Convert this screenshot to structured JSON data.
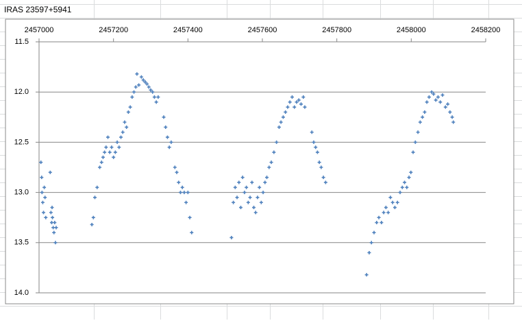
{
  "chart_data": {
    "type": "scatter",
    "title": "IRAS 23597+5941",
    "xlim": [
      2457000,
      2458200
    ],
    "xticks": [
      2457000,
      2457200,
      2457400,
      2457600,
      2457800,
      2458000,
      2458200
    ],
    "ylim": [
      11.5,
      14.0
    ],
    "y_inverted": true,
    "yticks": [
      11.5,
      {
        "value": 12.0,
        "label": "12.0"
      },
      12.5,
      {
        "value": 13.0,
        "label": "13.0"
      },
      13.5,
      {
        "value": 14.0,
        "label": "14.0"
      }
    ],
    "grid": true,
    "color": "#4f81bd",
    "x": [
      2457005,
      2457007,
      2457008,
      2457010,
      2457012,
      2457014,
      2457016,
      2457018,
      2457030,
      2457032,
      2457034,
      2457035,
      2457036,
      2457038,
      2457040,
      2457042,
      2457044,
      2457046,
      2457142,
      2457146,
      2457150,
      2457156,
      2457163,
      2457168,
      2457172,
      2457176,
      2457180,
      2457185,
      2457190,
      2457195,
      2457200,
      2457205,
      2457210,
      2457215,
      2457220,
      2457225,
      2457230,
      2457235,
      2457240,
      2457245,
      2457250,
      2457255,
      2457260,
      2457263,
      2457268,
      2457275,
      2457280,
      2457285,
      2457290,
      2457295,
      2457300,
      2457305,
      2457310,
      2457315,
      2457320,
      2457335,
      2457340,
      2457345,
      2457350,
      2457355,
      2457365,
      2457370,
      2457375,
      2457380,
      2457385,
      2457390,
      2457395,
      2457400,
      2457405,
      2457410,
      2457517,
      2457522,
      2457527,
      2457532,
      2457537,
      2457542,
      2457547,
      2457552,
      2457557,
      2457562,
      2457567,
      2457572,
      2457577,
      2457582,
      2457587,
      2457592,
      2457597,
      2457602,
      2457607,
      2457612,
      2457618,
      2457624,
      2457631,
      2457638,
      2457645,
      2457650,
      2457656,
      2457662,
      2457668,
      2457674,
      2457680,
      2457686,
      2457692,
      2457698,
      2457704,
      2457710,
      2457714,
      2457733,
      2457738,
      2457743,
      2457748,
      2457753,
      2457758,
      2457764,
      2457770,
      2457880,
      2457887,
      2457893,
      2457900,
      2457907,
      2457913,
      2457920,
      2457926,
      2457932,
      2457938,
      2457944,
      2457950,
      2457956,
      2457963,
      2457970,
      2457976,
      2457982,
      2457988,
      2457994,
      2457999,
      2458005,
      2458011,
      2458018,
      2458024,
      2458030,
      2458036,
      2458042,
      2458048,
      2458055,
      2458060,
      2458066,
      2458072,
      2458078,
      2458084,
      2458092,
      2458098,
      2458104,
      2458110,
      2458113
    ],
    "values": [
      12.7,
      12.85,
      13.0,
      13.1,
      13.2,
      12.95,
      13.05,
      13.25,
      12.8,
      13.2,
      13.3,
      13.15,
      13.25,
      13.35,
      13.4,
      13.3,
      13.5,
      13.35,
      13.32,
      13.25,
      13.05,
      12.95,
      12.75,
      12.7,
      12.65,
      12.6,
      12.55,
      12.45,
      12.6,
      12.55,
      12.65,
      12.6,
      12.5,
      12.55,
      12.45,
      12.4,
      12.3,
      12.35,
      12.2,
      12.15,
      12.05,
      12.0,
      11.95,
      11.82,
      11.93,
      11.85,
      11.88,
      11.9,
      11.92,
      11.95,
      11.98,
      12.0,
      12.05,
      12.1,
      12.05,
      12.25,
      12.35,
      12.45,
      12.55,
      12.5,
      12.75,
      12.8,
      12.9,
      13.0,
      12.95,
      13.0,
      13.1,
      13.0,
      13.25,
      13.4,
      13.45,
      13.1,
      12.95,
      13.05,
      12.9,
      13.15,
      12.85,
      13.0,
      12.95,
      13.1,
      13.05,
      12.9,
      13.15,
      13.2,
      13.05,
      12.95,
      13.1,
      13.0,
      12.9,
      12.85,
      12.75,
      12.7,
      12.6,
      12.5,
      12.35,
      12.3,
      12.25,
      12.2,
      12.15,
      12.1,
      12.05,
      12.15,
      12.1,
      12.08,
      12.12,
      12.05,
      12.15,
      12.4,
      12.5,
      12.55,
      12.6,
      12.7,
      12.75,
      12.85,
      12.9,
      13.82,
      13.6,
      13.5,
      13.4,
      13.3,
      13.25,
      13.3,
      13.2,
      13.15,
      13.2,
      13.05,
      13.1,
      13.15,
      13.1,
      13.0,
      12.95,
      12.9,
      12.95,
      12.85,
      12.8,
      12.6,
      12.5,
      12.4,
      12.3,
      12.25,
      12.2,
      12.1,
      12.05,
      12.0,
      12.02,
      12.08,
      12.05,
      12.1,
      12.03,
      12.15,
      12.12,
      12.2,
      12.25,
      12.3
    ]
  }
}
